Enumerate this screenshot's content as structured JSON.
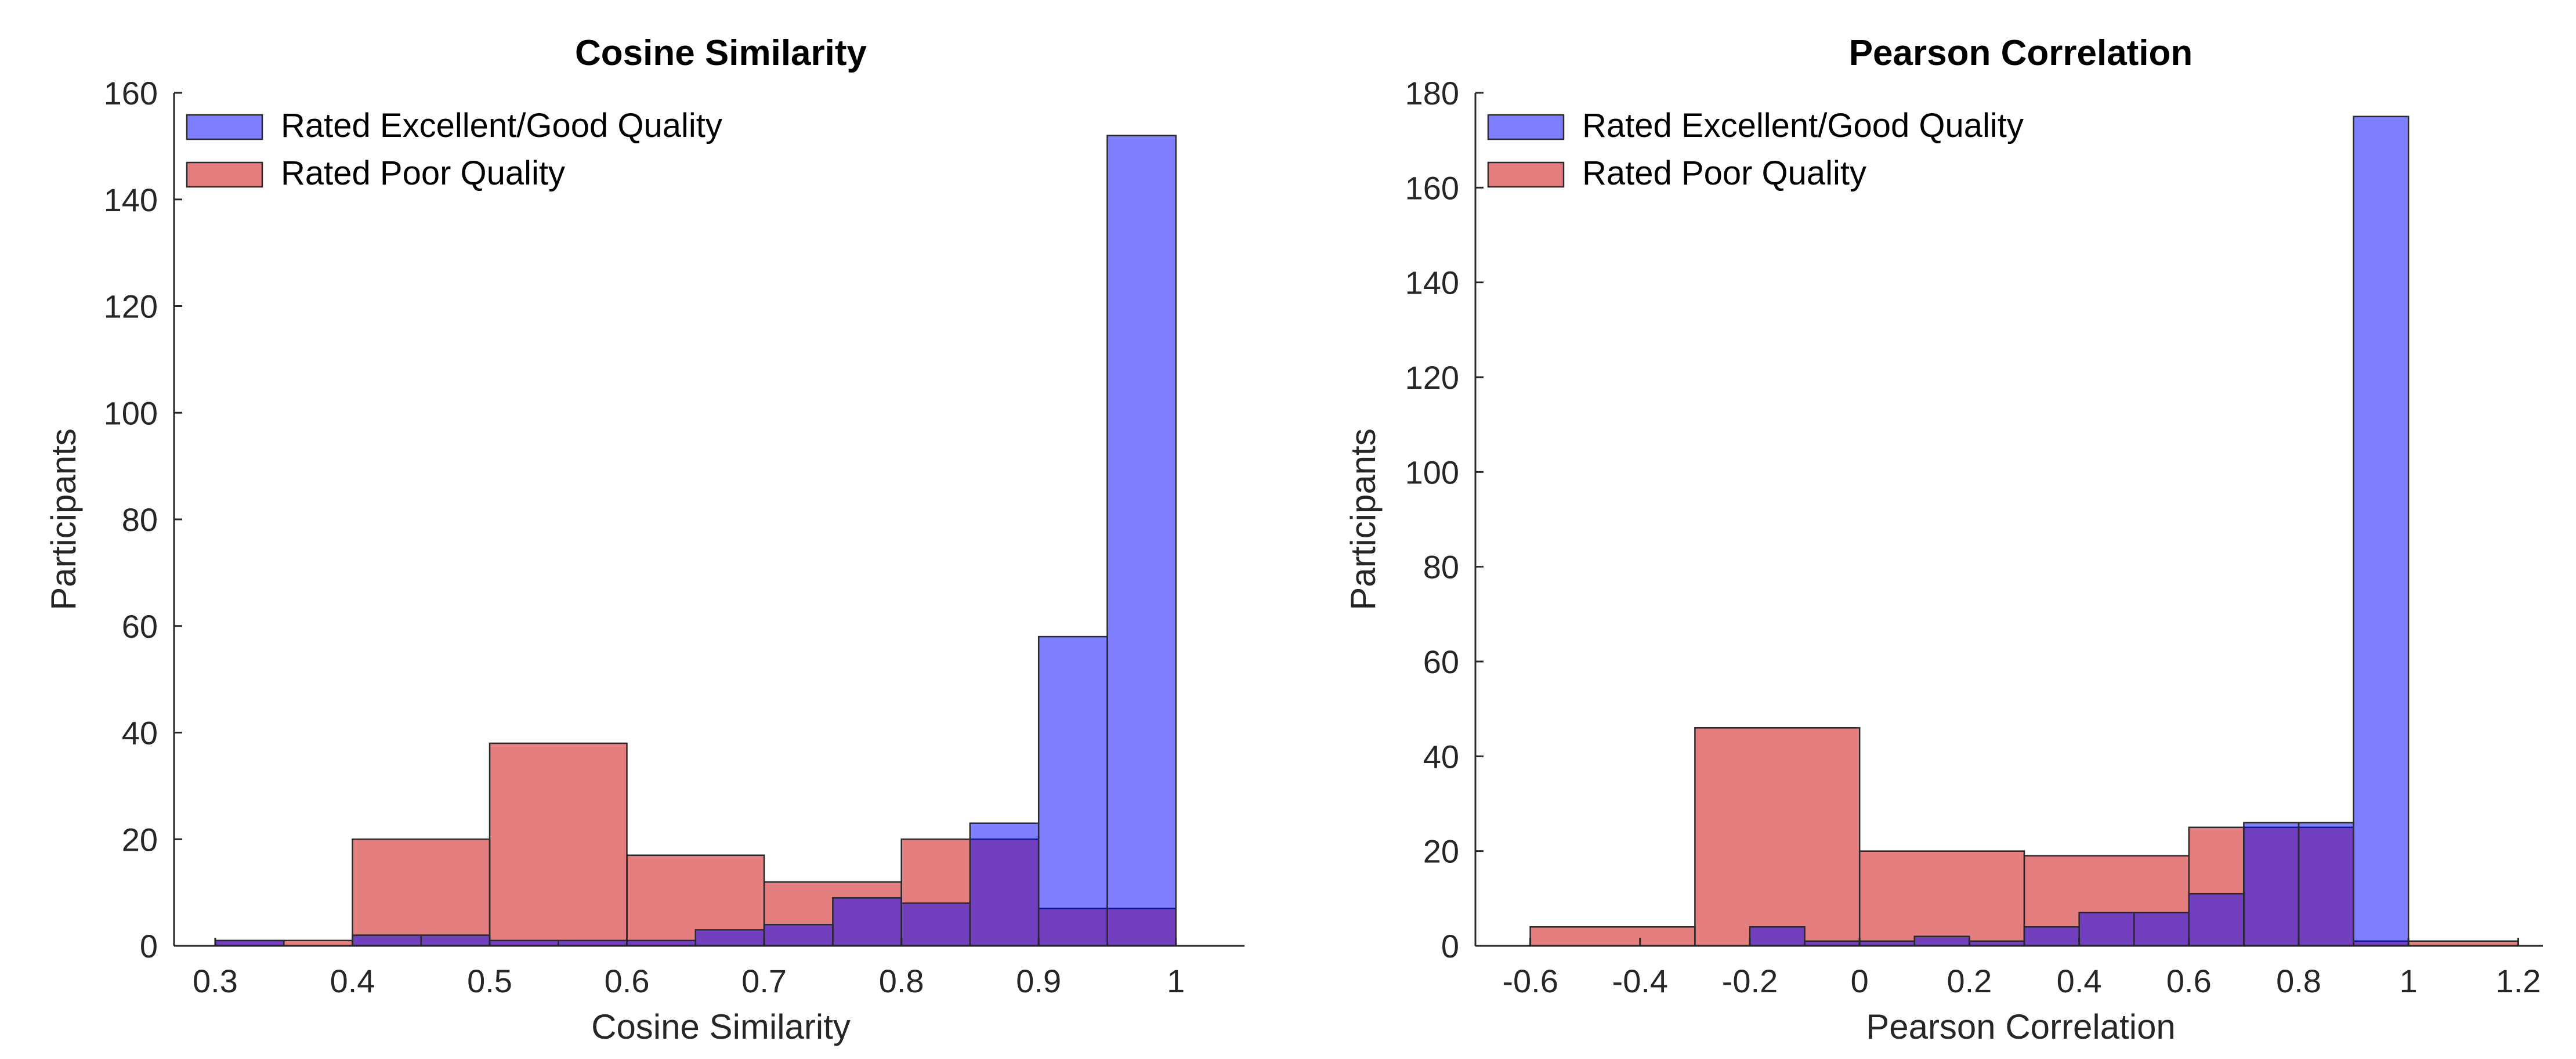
{
  "colors": {
    "good": "#0000FF",
    "poor": "#CC0000",
    "bar_opacity": 0.5,
    "axis": "#262626"
  },
  "chart_data": [
    {
      "type": "bar",
      "title": "Cosine Similarity",
      "xlabel": "Cosine Similarity",
      "ylabel": "Participants",
      "xlim": [
        0.3,
        1.0
      ],
      "ylim": [
        0,
        160
      ],
      "xticks": [
        0.3,
        0.4,
        0.5,
        0.6,
        0.7,
        0.8,
        0.9,
        1.0
      ],
      "xtick_labels": [
        "0.3",
        "0.4",
        "0.5",
        "0.6",
        "0.7",
        "0.8",
        "0.9",
        "1"
      ],
      "yticks": [
        0,
        20,
        40,
        60,
        80,
        100,
        120,
        140,
        160
      ],
      "ytick_labels": [
        "0",
        "20",
        "40",
        "60",
        "80",
        "100",
        "120",
        "140",
        "160"
      ],
      "legend": "top-left",
      "grid": false,
      "series": [
        {
          "name": "Rated Excellent/Good Quality",
          "color_key": "good",
          "bins": [
            [
              0.3,
              0.35
            ],
            [
              0.35,
              0.4
            ],
            [
              0.4,
              0.45
            ],
            [
              0.45,
              0.5
            ],
            [
              0.5,
              0.55
            ],
            [
              0.55,
              0.6
            ],
            [
              0.6,
              0.65
            ],
            [
              0.65,
              0.7
            ],
            [
              0.7,
              0.75
            ],
            [
              0.75,
              0.8
            ],
            [
              0.8,
              0.85
            ],
            [
              0.85,
              0.9
            ],
            [
              0.9,
              0.95
            ],
            [
              0.95,
              1.0
            ]
          ],
          "values": [
            1,
            0,
            2,
            2,
            1,
            1,
            1,
            3,
            4,
            9,
            8,
            23,
            58,
            152
          ]
        },
        {
          "name": "Rated Poor Quality",
          "color_key": "poor",
          "bins": [
            [
              0.3,
              0.4
            ],
            [
              0.4,
              0.5
            ],
            [
              0.5,
              0.6
            ],
            [
              0.6,
              0.7
            ],
            [
              0.7,
              0.8
            ],
            [
              0.8,
              0.9
            ],
            [
              0.9,
              1.0
            ]
          ],
          "values": [
            1,
            20,
            38,
            17,
            12,
            20,
            7
          ]
        }
      ]
    },
    {
      "type": "bar",
      "title": "Pearson Correlation",
      "xlabel": "Pearson Correlation",
      "ylabel": "Participants",
      "xlim": [
        -0.7,
        1.2
      ],
      "ylim": [
        0,
        180
      ],
      "xticks": [
        -0.6,
        -0.4,
        -0.2,
        0,
        0.2,
        0.4,
        0.6,
        0.8,
        1.0,
        1.2
      ],
      "xtick_labels": [
        "-0.6",
        "-0.4",
        "-0.2",
        "0",
        "0.2",
        "0.4",
        "0.6",
        "0.8",
        "1",
        "1.2"
      ],
      "yticks": [
        0,
        20,
        40,
        60,
        80,
        100,
        120,
        140,
        160,
        180
      ],
      "ytick_labels": [
        "0",
        "20",
        "40",
        "60",
        "80",
        "100",
        "120",
        "140",
        "160",
        "180"
      ],
      "legend": "top-left",
      "grid": false,
      "series": [
        {
          "name": "Rated Excellent/Good Quality",
          "color_key": "good",
          "bins": [
            [
              -0.3,
              -0.2
            ],
            [
              -0.2,
              -0.1
            ],
            [
              -0.1,
              0.0
            ],
            [
              0.0,
              0.1
            ],
            [
              0.1,
              0.2
            ],
            [
              0.2,
              0.3
            ],
            [
              0.3,
              0.4
            ],
            [
              0.4,
              0.5
            ],
            [
              0.5,
              0.6
            ],
            [
              0.6,
              0.7
            ],
            [
              0.7,
              0.8
            ],
            [
              0.8,
              0.9
            ],
            [
              0.9,
              1.0
            ]
          ],
          "values": [
            0,
            4,
            1,
            1,
            2,
            1,
            4,
            7,
            7,
            11,
            26,
            26,
            175
          ]
        },
        {
          "name": "Rated Poor Quality",
          "color_key": "poor",
          "bins": [
            [
              -0.6,
              -0.3
            ],
            [
              -0.3,
              0.0
            ],
            [
              0.0,
              0.3
            ],
            [
              0.3,
              0.6
            ],
            [
              0.6,
              0.7
            ],
            [
              0.7,
              0.8
            ],
            [
              0.8,
              0.9
            ],
            [
              0.9,
              1.0
            ],
            [
              1.0,
              1.2
            ]
          ],
          "values": [
            4,
            46,
            20,
            19,
            25,
            25,
            25,
            1,
            1
          ]
        }
      ]
    }
  ]
}
